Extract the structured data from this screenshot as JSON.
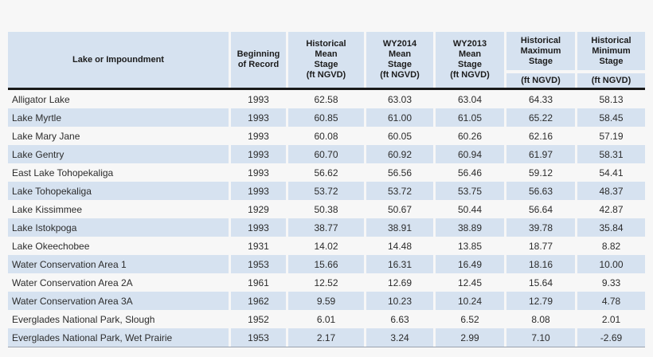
{
  "page": {
    "background_color": "#f7f7f7",
    "stripe_color": "#d6e2f0",
    "rule_color": "#1a1a1a"
  },
  "table": {
    "columns": [
      {
        "key": "name",
        "header": "Lake or Impoundment",
        "unit": ""
      },
      {
        "key": "beginning",
        "header": "Beginning\nof Record",
        "unit": ""
      },
      {
        "key": "hist_mean",
        "header": "Historical\nMean\nStage\n(ft NGVD)",
        "unit": ""
      },
      {
        "key": "wy2014",
        "header": "WY2014\nMean\nStage\n(ft NGVD)",
        "unit": ""
      },
      {
        "key": "wy2013",
        "header": "WY2013\nMean\nStage\n(ft NGVD)",
        "unit": ""
      },
      {
        "key": "hist_max",
        "header": "Historical\nMaximum\nStage",
        "unit": "(ft NGVD)"
      },
      {
        "key": "hist_min",
        "header": "Historical\nMinimum\nStage",
        "unit": "(ft NGVD)"
      }
    ],
    "rows": [
      [
        "Alligator Lake",
        "1993",
        "62.58",
        "63.03",
        "63.04",
        "64.33",
        "58.13"
      ],
      [
        "Lake Myrtle",
        "1993",
        "60.85",
        "61.00",
        "61.05",
        "65.22",
        "58.45"
      ],
      [
        "Lake Mary Jane",
        "1993",
        "60.08",
        "60.05",
        "60.26",
        "62.16",
        "57.19"
      ],
      [
        "Lake Gentry",
        "1993",
        "60.70",
        "60.92",
        "60.94",
        "61.97",
        "58.31"
      ],
      [
        "East Lake Tohopekaliga",
        "1993",
        "56.62",
        "56.56",
        "56.46",
        "59.12",
        "54.41"
      ],
      [
        "Lake Tohopekaliga",
        "1993",
        "53.72",
        "53.72",
        "53.75",
        "56.63",
        "48.37"
      ],
      [
        "Lake Kissimmee",
        "1929",
        "50.38",
        "50.67",
        "50.44",
        "56.64",
        "42.87"
      ],
      [
        "Lake Istokpoga",
        "1993",
        "38.77",
        "38.91",
        "38.89",
        "39.78",
        "35.84"
      ],
      [
        "Lake Okeechobee",
        "1931",
        "14.02",
        "14.48",
        "13.85",
        "18.77",
        "8.82"
      ],
      [
        "Water Conservation Area 1",
        "1953",
        "15.66",
        "16.31",
        "16.49",
        "18.16",
        "10.00"
      ],
      [
        "Water Conservation Area 2A",
        "1961",
        "12.52",
        "12.69",
        "12.45",
        "15.64",
        "9.33"
      ],
      [
        "Water Conservation Area 3A",
        "1962",
        "9.59",
        "10.23",
        "10.24",
        "12.79",
        "4.78"
      ],
      [
        "Everglades National Park, Slough",
        "1952",
        "6.01",
        "6.63",
        "6.52",
        "8.08",
        "2.01"
      ],
      [
        "Everglades National Park, Wet Prairie",
        "1953",
        "2.17",
        "3.24",
        "2.99",
        "7.10",
        "-2.69"
      ]
    ]
  }
}
